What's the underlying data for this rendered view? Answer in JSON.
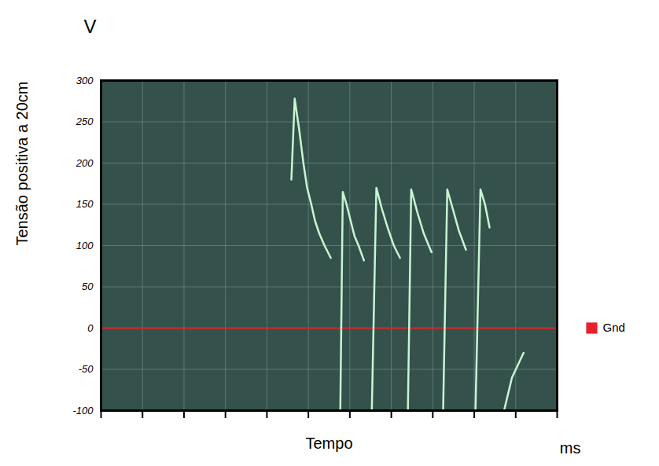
{
  "chart_data": {
    "type": "line",
    "x_label": "Tempo",
    "y_label": "Tensão positiva a 20cm",
    "x_unit": "ms",
    "y_unit": "V",
    "x": [
      4.59,
      4.67,
      4.78,
      4.88,
      4.97,
      5.07,
      5.16,
      5.26,
      5.39,
      5.54,
      5.65,
      5.77,
      5.83,
      5.92,
      6.02,
      6.11,
      6.21,
      6.34,
      6.43,
      6.53,
      6.64,
      6.77,
      6.91,
      7.06,
      7.21,
      7.3,
      7.4,
      7.48,
      7.63,
      7.78,
      7.97,
      8.1,
      8.25,
      8.35,
      8.48,
      8.63,
      8.8,
      8.9,
      9.03,
      9.15,
      9.26,
      9.37,
      9.5,
      9.72,
      9.91,
      10.19
    ],
    "series": [
      {
        "color": "#c8f5d2",
        "values": [
          180,
          278,
          240,
          200,
          170,
          150,
          130,
          115,
          100,
          85,
          null,
          -100,
          165,
          150,
          130,
          112,
          100,
          82,
          null,
          -100,
          170,
          145,
          122,
          100,
          85,
          null,
          -100,
          168,
          140,
          115,
          92,
          null,
          -100,
          168,
          145,
          118,
          95,
          null,
          -100,
          168,
          150,
          122,
          null,
          -100,
          -60,
          -30
        ]
      }
    ],
    "xlim": [
      0,
      11
    ],
    "xticks": [
      0,
      1,
      2,
      3,
      4,
      5,
      6,
      7,
      8,
      9,
      10,
      11
    ],
    "ylim": [
      -100,
      300
    ],
    "yticks": [
      -100,
      -50,
      0,
      50,
      100,
      150,
      200,
      250,
      300
    ],
    "grid": true,
    "tick_labels": "y",
    "reference_lines": [
      {
        "name": "Gnd",
        "value": 0,
        "color": "#e8202a"
      }
    ],
    "legend": "right"
  }
}
